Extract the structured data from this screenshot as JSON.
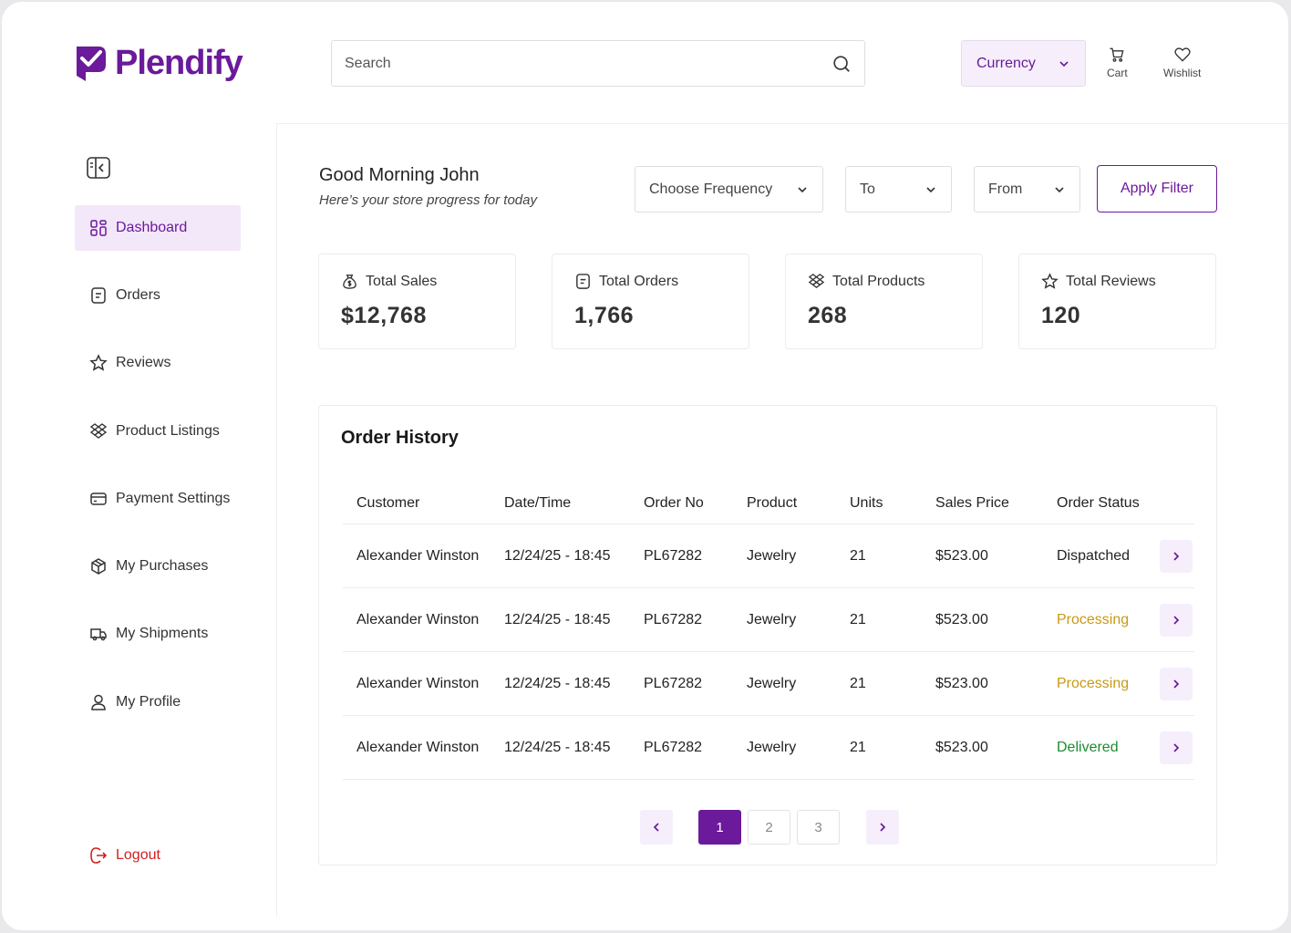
{
  "brand": {
    "name": "Plendify",
    "color": "#6a1a9a"
  },
  "header": {
    "search_placeholder": "Search",
    "currency_label": "Currency",
    "cart_label": "Cart",
    "wishlist_label": "Wishlist"
  },
  "sidebar": {
    "items": [
      {
        "label": "Dashboard",
        "icon": "grid-icon",
        "active": true
      },
      {
        "label": "Orders",
        "icon": "receipt-icon"
      },
      {
        "label": "Reviews",
        "icon": "star-icon"
      },
      {
        "label": "Product Listings",
        "icon": "boxes-icon"
      },
      {
        "label": "Payment Settings",
        "icon": "card-icon"
      },
      {
        "label": "My Purchases",
        "icon": "package-icon"
      },
      {
        "label": "My Shipments",
        "icon": "truck-icon"
      },
      {
        "label": "My Profile",
        "icon": "user-icon"
      }
    ],
    "logout_label": "Logout"
  },
  "greeting": {
    "title": "Good Morning John",
    "subtitle": "Here’s your store progress for today"
  },
  "filters": {
    "frequency": "Choose Frequency",
    "to": "To",
    "from": "From",
    "apply": "Apply Filter"
  },
  "stats": [
    {
      "label": "Total Sales",
      "value": "$12,768",
      "icon": "money-bag-icon"
    },
    {
      "label": "Total Orders",
      "value": "1,766",
      "icon": "receipt-icon"
    },
    {
      "label": "Total Products",
      "value": "268",
      "icon": "boxes-icon"
    },
    {
      "label": "Total Reviews",
      "value": "120",
      "icon": "star-icon"
    }
  ],
  "order_history": {
    "title": "Order History",
    "columns": [
      "Customer",
      "Date/Time",
      "Order No",
      "Product",
      "Units",
      "Sales Price",
      "Order Status"
    ],
    "rows": [
      {
        "customer": "Alexander Winston",
        "datetime": "12/24/25 - 18:45",
        "order_no": "PL67282",
        "product": "Jewelry",
        "units": "21",
        "price": "$523.00",
        "status": "Dispatched",
        "status_type": "dispatched"
      },
      {
        "customer": "Alexander Winston",
        "datetime": "12/24/25 - 18:45",
        "order_no": "PL67282",
        "product": "Jewelry",
        "units": "21",
        "price": "$523.00",
        "status": "Processing",
        "status_type": "processing"
      },
      {
        "customer": "Alexander Winston",
        "datetime": "12/24/25 - 18:45",
        "order_no": "PL67282",
        "product": "Jewelry",
        "units": "21",
        "price": "$523.00",
        "status": "Processing",
        "status_type": "processing"
      },
      {
        "customer": "Alexander Winston",
        "datetime": "12/24/25 - 18:45",
        "order_no": "PL67282",
        "product": "Jewelry",
        "units": "21",
        "price": "$523.00",
        "status": "Delivered",
        "status_type": "delivered"
      }
    ],
    "pages": [
      "1",
      "2",
      "3"
    ],
    "current_page": "1"
  },
  "status_colors": {
    "dispatched": "#222222",
    "processing": "#c79a14",
    "delivered": "#1e8a30"
  }
}
